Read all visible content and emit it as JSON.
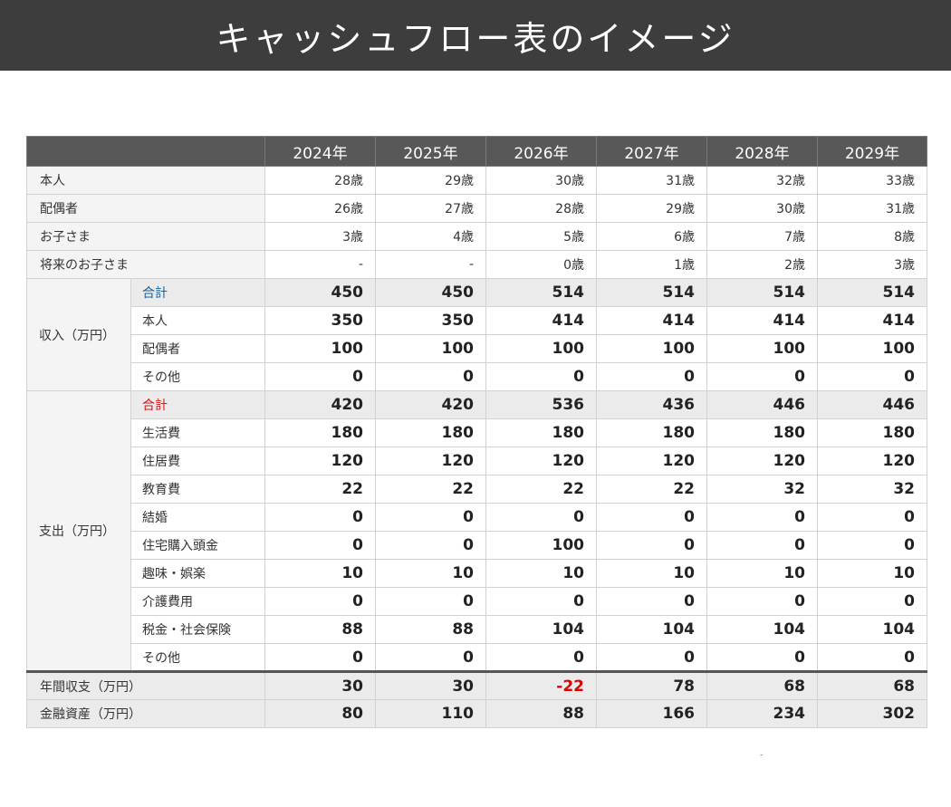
{
  "title": "キャッシュフロー表のイメージ",
  "years": [
    "2024年",
    "2025年",
    "2026年",
    "2027年",
    "2028年",
    "2029年"
  ],
  "ages": [
    {
      "label": "本人",
      "values": [
        "28歳",
        "29歳",
        "30歳",
        "31歳",
        "32歳",
        "33歳"
      ]
    },
    {
      "label": "配偶者",
      "values": [
        "26歳",
        "27歳",
        "28歳",
        "29歳",
        "30歳",
        "31歳"
      ]
    },
    {
      "label": "お子さま",
      "values": [
        "3歳",
        "4歳",
        "5歳",
        "6歳",
        "7歳",
        "8歳"
      ]
    },
    {
      "label": "将来のお子さま",
      "values": [
        "-",
        "-",
        "0歳",
        "1歳",
        "2歳",
        "3歳"
      ]
    }
  ],
  "income": {
    "label": "収入（万円）",
    "rows": [
      {
        "label": "合計",
        "values": [
          "450",
          "450",
          "514",
          "514",
          "514",
          "514"
        ]
      },
      {
        "label": "本人",
        "values": [
          "350",
          "350",
          "414",
          "414",
          "414",
          "414"
        ]
      },
      {
        "label": "配偶者",
        "values": [
          "100",
          "100",
          "100",
          "100",
          "100",
          "100"
        ]
      },
      {
        "label": "その他",
        "values": [
          "0",
          "0",
          "0",
          "0",
          "0",
          "0"
        ]
      }
    ]
  },
  "expense": {
    "label": "支出（万円）",
    "rows": [
      {
        "label": "合計",
        "values": [
          "420",
          "420",
          "536",
          "436",
          "446",
          "446"
        ]
      },
      {
        "label": "生活費",
        "values": [
          "180",
          "180",
          "180",
          "180",
          "180",
          "180"
        ]
      },
      {
        "label": "住居費",
        "values": [
          "120",
          "120",
          "120",
          "120",
          "120",
          "120"
        ]
      },
      {
        "label": "教育費",
        "values": [
          "22",
          "22",
          "22",
          "22",
          "32",
          "32"
        ]
      },
      {
        "label": "結婚",
        "values": [
          "0",
          "0",
          "0",
          "0",
          "0",
          "0"
        ]
      },
      {
        "label": "住宅購入頭金",
        "values": [
          "0",
          "0",
          "100",
          "0",
          "0",
          "0"
        ]
      },
      {
        "label": "趣味・娯楽",
        "values": [
          "10",
          "10",
          "10",
          "10",
          "10",
          "10"
        ]
      },
      {
        "label": "介護費用",
        "values": [
          "0",
          "0",
          "0",
          "0",
          "0",
          "0"
        ]
      },
      {
        "label": "税金・社会保険",
        "values": [
          "88",
          "88",
          "104",
          "104",
          "104",
          "104"
        ]
      },
      {
        "label": "その他",
        "values": [
          "0",
          "0",
          "0",
          "0",
          "0",
          "0"
        ]
      }
    ]
  },
  "balance": {
    "label": "年間収支（万円）",
    "values": [
      "30",
      "30",
      "-22",
      "78",
      "68",
      "68"
    ]
  },
  "assets": {
    "label": "金融資産（万円）",
    "values": [
      "80",
      "110",
      "88",
      "166",
      "234",
      "302"
    ]
  },
  "footer_mark": "-",
  "colors": {
    "header_bg": "#3d3d3d",
    "table_header_bg": "#585858",
    "income_total": "#1a5f98",
    "expense_total": "#d01818",
    "negative": "#e00000"
  }
}
